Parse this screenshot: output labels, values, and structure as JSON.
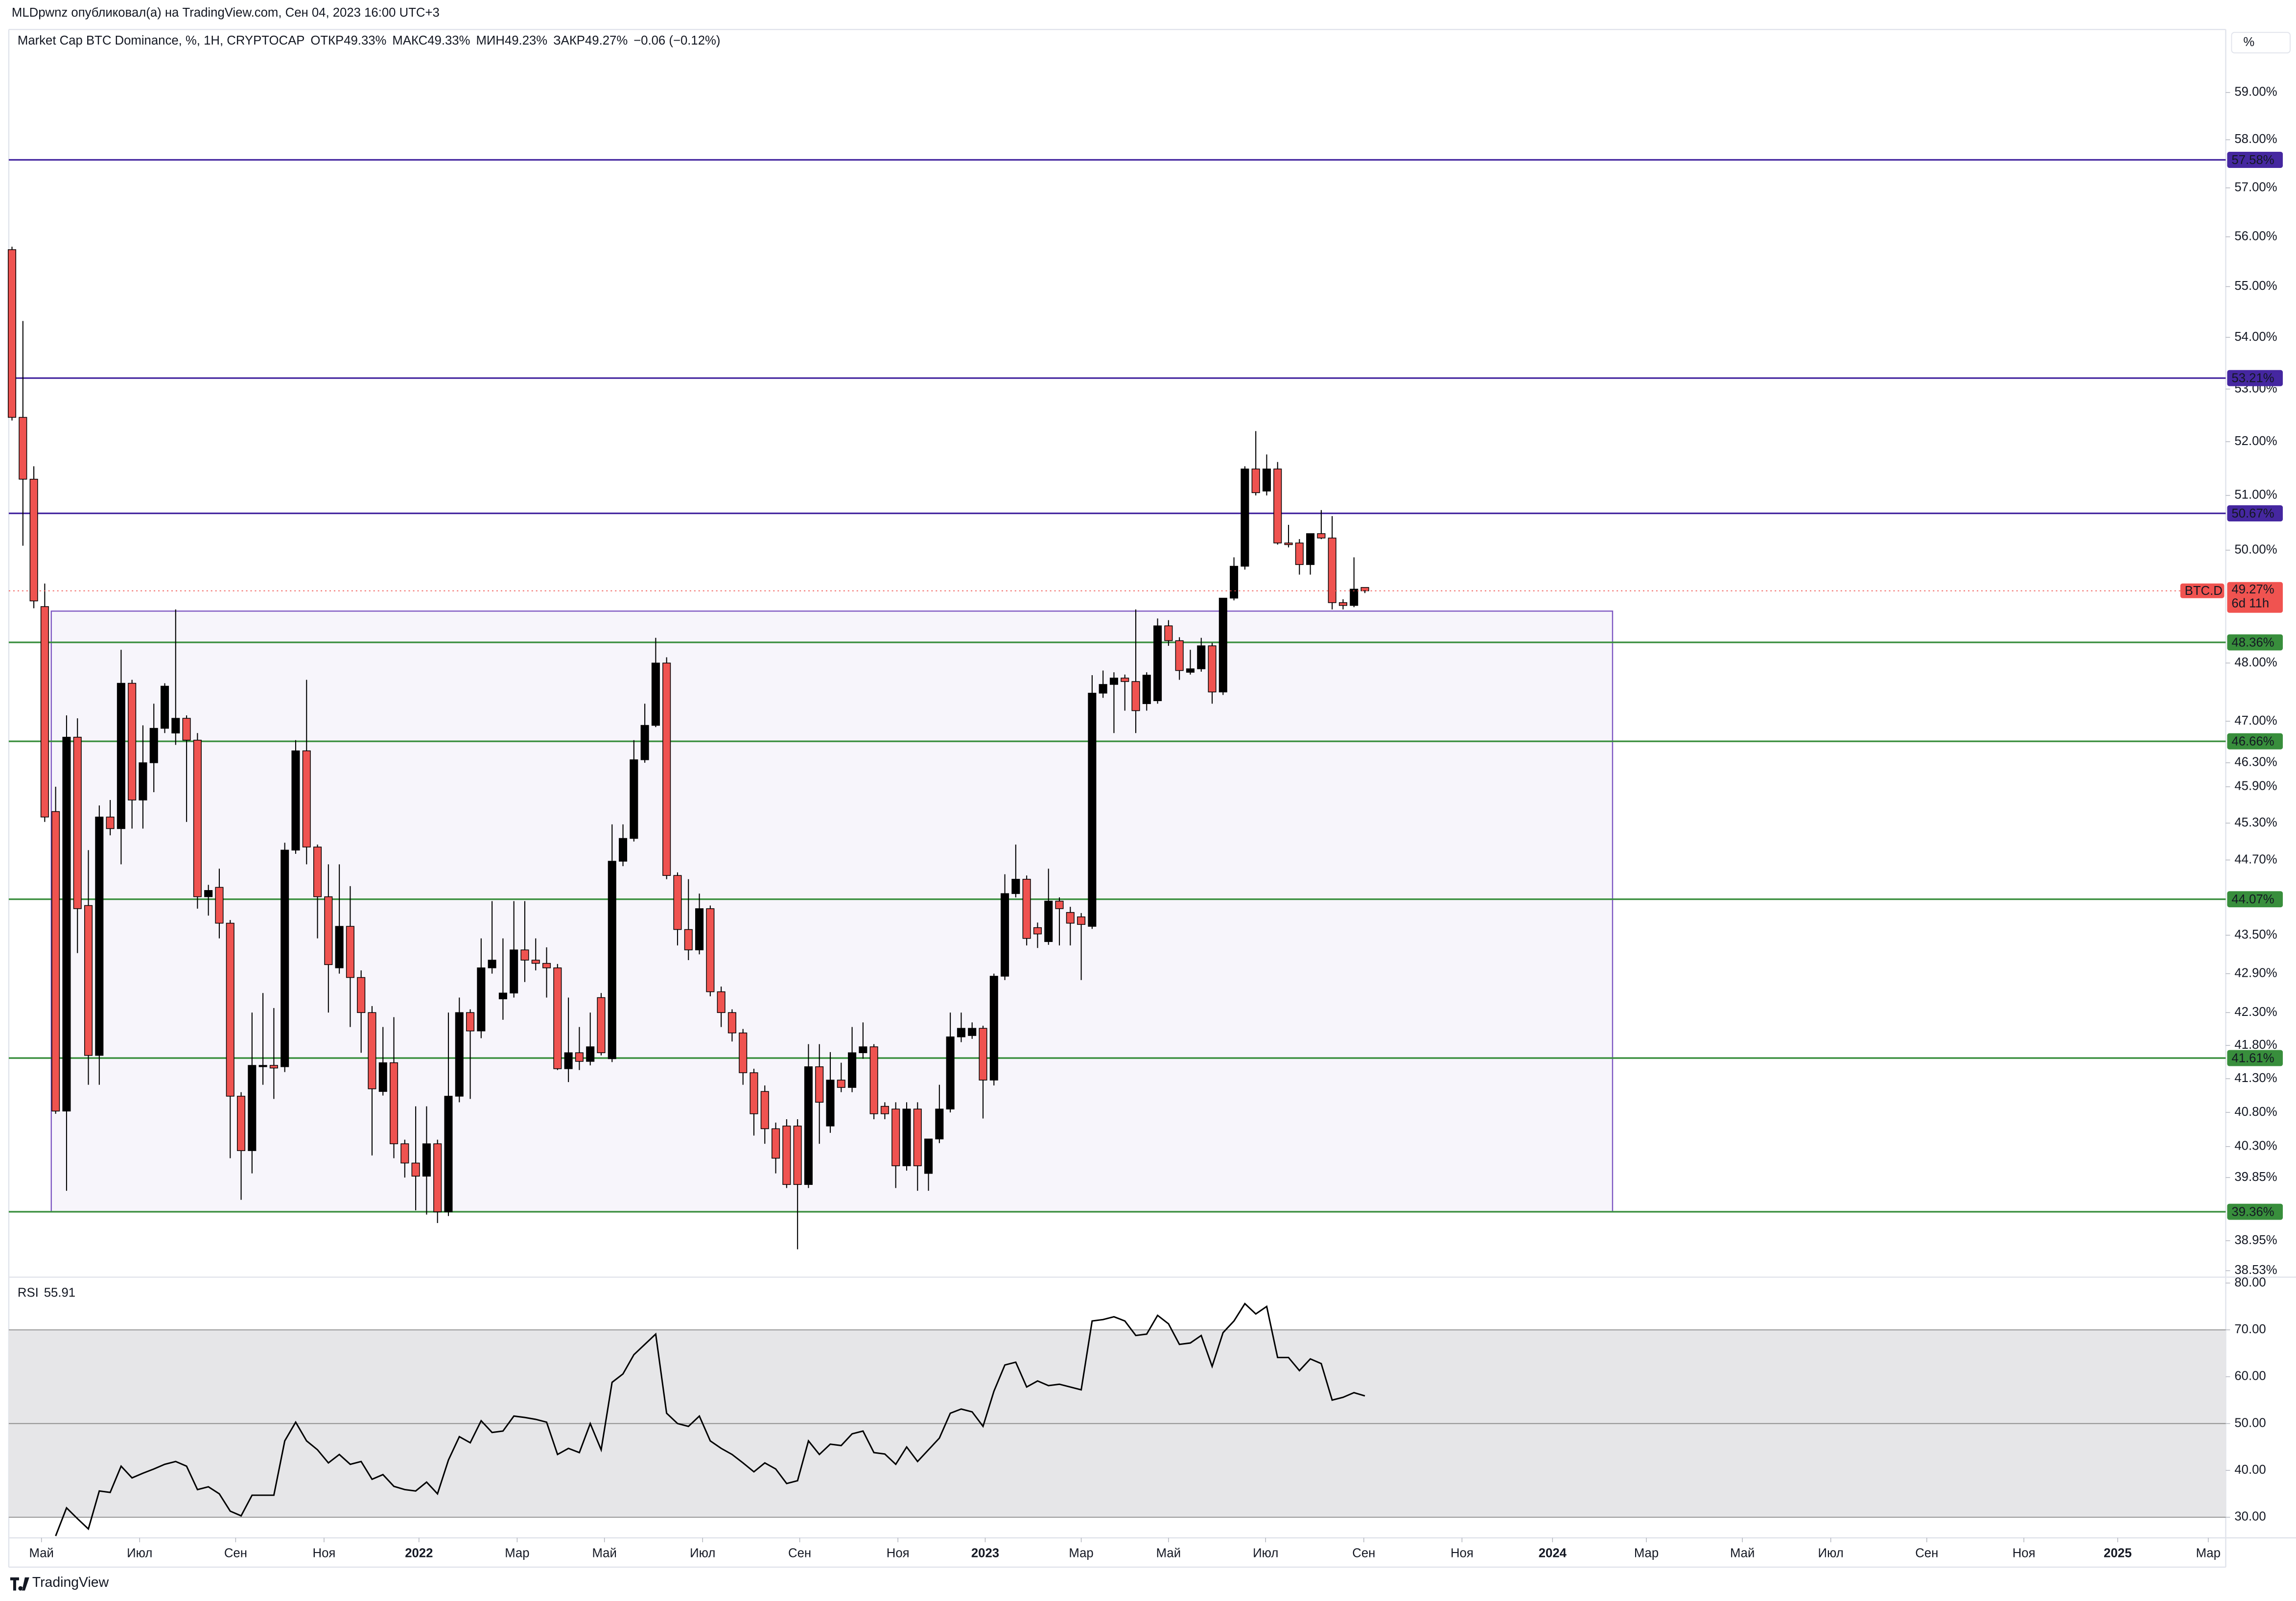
{
  "header": {
    "publisher": "MLDpwnz опубликовал(а) на TradingView.com, Сен 04, 2023 16:00 UTC+3",
    "logo": "TradingView",
    "unit_button": "%"
  },
  "chart_data": [
    {
      "type": "candlestick",
      "title": "Market Cap BTC Dominance, %, 1H, CRYPTOCAP",
      "legend_values": [
        {
          "label": "ОТКР",
          "value": "49.33%"
        },
        {
          "label": "МАКС",
          "value": "49.33%"
        },
        {
          "label": "МИН",
          "value": "49.23%"
        },
        {
          "label": "ЗАКР",
          "value": "49.27%"
        }
      ],
      "change": "−0.06 (−0.12%)",
      "log_scale": true,
      "ylim": [
        38.44,
        60.36
      ],
      "yticks": [
        {
          "value": 59,
          "label": "59.00%"
        },
        {
          "value": 58,
          "label": "58.00%"
        },
        {
          "value": 57,
          "label": "57.00%"
        },
        {
          "value": 56,
          "label": "56.00%"
        },
        {
          "value": 55,
          "label": "55.00%"
        },
        {
          "value": 54,
          "label": "54.00%"
        },
        {
          "value": 53,
          "label": "53.00%"
        },
        {
          "value": 52,
          "label": "52.00%"
        },
        {
          "value": 51,
          "label": "51.00%"
        },
        {
          "value": 50,
          "label": "50.00%"
        },
        {
          "value": 48,
          "label": "48.00%"
        },
        {
          "value": 47,
          "label": "47.00%"
        },
        {
          "value": 46.3,
          "label": "46.30%"
        },
        {
          "value": 45.9,
          "label": "45.90%"
        },
        {
          "value": 45.3,
          "label": "45.30%"
        },
        {
          "value": 44.7,
          "label": "44.70%"
        },
        {
          "value": 43.5,
          "label": "43.50%"
        },
        {
          "value": 42.9,
          "label": "42.90%"
        },
        {
          "value": 42.3,
          "label": "42.30%"
        },
        {
          "value": 41.8,
          "label": "41.80%"
        },
        {
          "value": 41.3,
          "label": "41.30%"
        },
        {
          "value": 40.8,
          "label": "40.80%"
        },
        {
          "value": 40.3,
          "label": "40.30%"
        },
        {
          "value": 39.85,
          "label": "39.85%"
        },
        {
          "value": 38.95,
          "label": "38.95%"
        },
        {
          "value": 38.53,
          "label": "38.53%"
        }
      ],
      "xlim": [
        -1.1,
        202.9
      ],
      "xticks": [
        {
          "value": 2.7,
          "label": "Май"
        },
        {
          "value": 11.7,
          "label": "Июл"
        },
        {
          "value": 20.5,
          "label": "Сен"
        },
        {
          "value": 28.6,
          "label": "Ноя"
        },
        {
          "value": 37.3,
          "label": "2022"
        },
        {
          "value": 46.3,
          "label": "Мар"
        },
        {
          "value": 54.3,
          "label": "Май"
        },
        {
          "value": 63.3,
          "label": "Июл"
        },
        {
          "value": 72.2,
          "label": "Сен"
        },
        {
          "value": 81.2,
          "label": "Ноя"
        },
        {
          "value": 89.2,
          "label": "2023"
        },
        {
          "value": 98,
          "label": "Мар"
        },
        {
          "value": 106,
          "label": "Май"
        },
        {
          "value": 114.9,
          "label": "Июл"
        },
        {
          "value": 123.9,
          "label": "Сен"
        },
        {
          "value": 132.9,
          "label": "Ноя"
        },
        {
          "value": 141.2,
          "label": "2024"
        },
        {
          "value": 149.8,
          "label": "Мар"
        },
        {
          "value": 158.6,
          "label": "Май"
        },
        {
          "value": 166.7,
          "label": "Июл"
        },
        {
          "value": 175.5,
          "label": "Сен"
        },
        {
          "value": 184.4,
          "label": "Ноя"
        },
        {
          "value": 193,
          "label": "2025"
        },
        {
          "value": 201.3,
          "label": "Мар"
        }
      ],
      "up_color": "#000000",
      "down_color": "#ef5350",
      "ohlc": [
        [
          55.74,
          55.8,
          52.4,
          52.46
        ],
        [
          52.46,
          54.32,
          50.08,
          51.3
        ],
        [
          51.3,
          51.54,
          48.96,
          49.09
        ],
        [
          48.99,
          49.4,
          45.32,
          45.4
        ],
        [
          45.49,
          45.9,
          40.78,
          40.82
        ],
        [
          40.82,
          47.1,
          39.66,
          46.73
        ],
        [
          46.73,
          47.05,
          43.22,
          43.92
        ],
        [
          43.97,
          44.86,
          41.21,
          41.65
        ],
        [
          41.65,
          45.59,
          41.21,
          45.4
        ],
        [
          45.4,
          45.68,
          45.1,
          45.21
        ],
        [
          45.21,
          48.23,
          44.63,
          47.65
        ],
        [
          47.65,
          47.71,
          45.21,
          45.68
        ],
        [
          45.68,
          46.93,
          45.21,
          46.3
        ],
        [
          46.3,
          47.3,
          45.81,
          46.88
        ],
        [
          46.88,
          47.65,
          46.8,
          47.6
        ],
        [
          46.8,
          48.94,
          46.6,
          47.05
        ],
        [
          47.05,
          47.1,
          45.32,
          46.68
        ],
        [
          46.68,
          46.8,
          43.92,
          44.11
        ],
        [
          44.11,
          44.3,
          43.81,
          44.21
        ],
        [
          44.26,
          44.56,
          43.45,
          43.69
        ],
        [
          43.69,
          43.74,
          40.13,
          41.04
        ],
        [
          41.04,
          41.1,
          39.53,
          40.24
        ],
        [
          40.24,
          42.3,
          39.91,
          41.5
        ],
        [
          41.48,
          42.6,
          41.21,
          41.5
        ],
        [
          41.5,
          42.37,
          41,
          41.46
        ],
        [
          41.48,
          44.98,
          41.4,
          44.86
        ],
        [
          44.86,
          46.68,
          44.8,
          46.5
        ],
        [
          46.5,
          47.71,
          44.63,
          44.91
        ],
        [
          44.91,
          44.95,
          43.45,
          44.11
        ],
        [
          44.11,
          44.63,
          42.3,
          43.04
        ],
        [
          42.99,
          44.63,
          42.9,
          43.64
        ],
        [
          43.64,
          44.28,
          42.08,
          42.84
        ],
        [
          42.84,
          42.95,
          41.69,
          42.3
        ],
        [
          42.3,
          42.4,
          40.17,
          41.15
        ],
        [
          41.11,
          42.08,
          41.05,
          41.54
        ],
        [
          41.54,
          42.23,
          40.13,
          40.34
        ],
        [
          40.34,
          40.4,
          39.85,
          40.06
        ],
        [
          40.06,
          40.89,
          39.38,
          39.87
        ],
        [
          39.87,
          40.89,
          39.32,
          40.34
        ],
        [
          40.34,
          40.4,
          39.2,
          39.36
        ],
        [
          39.36,
          42.3,
          39.3,
          41.04
        ],
        [
          41.04,
          42.53,
          40.95,
          42.3
        ],
        [
          42.3,
          42.35,
          41,
          42.02
        ],
        [
          42.02,
          43.45,
          41.91,
          42.99
        ],
        [
          42.99,
          44.04,
          42.9,
          43.11
        ],
        [
          42.51,
          43.45,
          42.19,
          42.6
        ],
        [
          42.6,
          44.04,
          42.53,
          43.27
        ],
        [
          43.27,
          44.04,
          42.77,
          43.11
        ],
        [
          43.11,
          43.45,
          42.95,
          43.06
        ],
        [
          43.06,
          43.31,
          42.53,
          42.99
        ],
        [
          42.99,
          43.05,
          41.43,
          41.45
        ],
        [
          41.45,
          42.53,
          41.25,
          41.69
        ],
        [
          41.69,
          42.08,
          41.43,
          41.56
        ],
        [
          41.56,
          42.3,
          41.5,
          41.78
        ],
        [
          42.53,
          42.6,
          41.65,
          41.69
        ],
        [
          41.6,
          45.28,
          41.55,
          44.68
        ],
        [
          44.68,
          45.28,
          44.6,
          45.05
        ],
        [
          45.05,
          46.68,
          45,
          46.35
        ],
        [
          46.35,
          47.3,
          46.3,
          46.93
        ],
        [
          46.93,
          48.44,
          46.9,
          48
        ],
        [
          48,
          48.1,
          44.39,
          44.45
        ],
        [
          44.45,
          44.5,
          43.34,
          43.59
        ],
        [
          43.59,
          44.39,
          43.11,
          43.27
        ],
        [
          43.27,
          44.16,
          43.2,
          43.92
        ],
        [
          43.92,
          43.97,
          42.55,
          42.62
        ],
        [
          42.62,
          42.7,
          42.08,
          42.3
        ],
        [
          42.3,
          42.35,
          41.86,
          41.99
        ],
        [
          41.99,
          42.05,
          41.21,
          41.39
        ],
        [
          41.39,
          41.45,
          40.46,
          40.78
        ],
        [
          41.11,
          41.2,
          40.34,
          40.56
        ],
        [
          40.56,
          40.65,
          39.91,
          40.13
        ],
        [
          40.6,
          40.7,
          39.7,
          39.75
        ],
        [
          40.6,
          40.7,
          38.83,
          39.75
        ],
        [
          39.75,
          41.82,
          39.7,
          41.48
        ],
        [
          41.48,
          41.82,
          40.34,
          40.95
        ],
        [
          40.6,
          41.7,
          40.5,
          41.28
        ],
        [
          41.28,
          41.54,
          41.1,
          41.17
        ],
        [
          41.17,
          42.08,
          41.1,
          41.69
        ],
        [
          41.69,
          42.15,
          41.6,
          41.78
        ],
        [
          41.78,
          41.82,
          40.7,
          40.78
        ],
        [
          40.89,
          40.95,
          40.7,
          40.78
        ],
        [
          40.85,
          40.95,
          39.7,
          40.02
        ],
        [
          40.02,
          40.95,
          39.95,
          40.85
        ],
        [
          40.85,
          40.95,
          39.66,
          40.02
        ],
        [
          39.91,
          40.41,
          39.66,
          40.41
        ],
        [
          40.41,
          41.21,
          40.35,
          40.85
        ],
        [
          40.85,
          42.3,
          40.8,
          41.93
        ],
        [
          41.93,
          42.3,
          41.85,
          42.06
        ],
        [
          41.95,
          42.15,
          41.9,
          42.06
        ],
        [
          42.06,
          42.1,
          40.71,
          41.28
        ],
        [
          41.28,
          42.9,
          41.2,
          42.86
        ],
        [
          42.86,
          44.47,
          42.8,
          44.16
        ],
        [
          44.16,
          44.95,
          44.1,
          44.39
        ],
        [
          44.39,
          44.45,
          43.34,
          43.45
        ],
        [
          43.62,
          43.7,
          43.3,
          43.52
        ],
        [
          43.4,
          44.56,
          43.35,
          44.04
        ],
        [
          44.04,
          44.1,
          43.34,
          43.92
        ],
        [
          43.86,
          43.95,
          43.34,
          43.69
        ],
        [
          43.79,
          43.85,
          42.8,
          43.67
        ],
        [
          43.64,
          47.79,
          43.6,
          47.48
        ],
        [
          47.48,
          47.87,
          47.4,
          47.63
        ],
        [
          47.63,
          47.84,
          46.8,
          47.74
        ],
        [
          47.74,
          47.8,
          47.18,
          47.68
        ],
        [
          47.68,
          48.94,
          46.8,
          47.18
        ],
        [
          47.3,
          47.84,
          47.18,
          47.79
        ],
        [
          47.35,
          48.78,
          47.3,
          48.65
        ],
        [
          48.65,
          48.75,
          48.3,
          48.39
        ],
        [
          48.39,
          48.45,
          47.71,
          47.87
        ],
        [
          47.84,
          48.23,
          47.8,
          47.9
        ],
        [
          47.9,
          48.44,
          47.85,
          48.3
        ],
        [
          48.3,
          48.35,
          47.3,
          47.5
        ],
        [
          47.5,
          49.14,
          47.45,
          49.14
        ],
        [
          49.14,
          49.87,
          49.1,
          49.71
        ],
        [
          49.71,
          51.54,
          49.65,
          51.49
        ],
        [
          51.49,
          52.2,
          51,
          51.05
        ],
        [
          51.08,
          51.76,
          51,
          51.49
        ],
        [
          51.49,
          51.62,
          50.1,
          50.13
        ],
        [
          50.13,
          50.46,
          50.05,
          50.1
        ],
        [
          50.13,
          50.2,
          49.56,
          49.74
        ],
        [
          49.74,
          50.3,
          49.56,
          50.3
        ],
        [
          50.3,
          50.73,
          50.2,
          50.22
        ],
        [
          50.22,
          50.62,
          48.94,
          49.06
        ],
        [
          49.06,
          49.12,
          48.94,
          49.01
        ],
        [
          49.01,
          49.87,
          48.98,
          49.3
        ],
        [
          49.33,
          49.33,
          49.23,
          49.27
        ]
      ],
      "levels": [
        {
          "value": 57.58,
          "label": "57.58%",
          "color": "#4527a0"
        },
        {
          "value": 53.21,
          "label": "53.21%",
          "color": "#4527a0"
        },
        {
          "value": 50.67,
          "label": "50.67%",
          "color": "#4527a0"
        },
        {
          "value": 48.36,
          "label": "48.36%",
          "color": "#388e3c"
        },
        {
          "value": 46.66,
          "label": "46.66%",
          "color": "#388e3c"
        },
        {
          "value": 44.07,
          "label": "44.07%",
          "color": "#388e3c"
        },
        {
          "value": 41.61,
          "label": "41.61%",
          "color": "#388e3c"
        },
        {
          "value": 39.36,
          "label": "39.36%",
          "color": "#388e3c"
        }
      ],
      "range_box": {
        "high": 48.91,
        "low": 39.36,
        "start": 3.6,
        "end": 146.7,
        "color": "#7e57c2"
      },
      "last_price": {
        "symbol": "BTC.D",
        "value": 49.27,
        "label": "49.27%",
        "countdown": "6d 11h",
        "color": "#f05350"
      }
    },
    {
      "type": "line",
      "title": "RSI",
      "last_value": 55.91,
      "color": "#000000",
      "ylim": [
        25.6,
        81.25
      ],
      "yticks": [
        {
          "value": 80,
          "label": "80.00"
        },
        {
          "value": 70,
          "label": "70.00"
        },
        {
          "value": 60,
          "label": "60.00"
        },
        {
          "value": 50,
          "label": "50.00"
        },
        {
          "value": 40,
          "label": "40.00"
        },
        {
          "value": 30,
          "label": "30.00"
        }
      ],
      "band": [
        30,
        70
      ],
      "hlines": [
        70,
        50,
        30
      ],
      "values": [
        null,
        null,
        null,
        null,
        26,
        32,
        29.7,
        27.5,
        35.6,
        35.3,
        40.9,
        38.4,
        39.4,
        40.3,
        41.3,
        41.9,
        40.9,
        35.9,
        36.5,
        35,
        31.3,
        30.3,
        34.7,
        34.7,
        34.7,
        46.3,
        50.3,
        46.3,
        44.4,
        41.6,
        43.4,
        41.3,
        41.9,
        38.1,
        39.1,
        36.6,
        35.9,
        35.6,
        37.5,
        35,
        42.2,
        47.2,
        45.9,
        50.6,
        48.1,
        48.4,
        51.6,
        51.3,
        50.9,
        50.3,
        43.4,
        44.7,
        43.8,
        50,
        44.4,
        58.8,
        60.6,
        64.7,
        66.9,
        69.1,
        52.2,
        50,
        49.4,
        51.6,
        46.3,
        44.7,
        43.4,
        41.6,
        39.7,
        41.6,
        40.3,
        37.2,
        37.8,
        46.3,
        43.4,
        45.6,
        45.3,
        47.8,
        48.4,
        43.8,
        43.5,
        41.3,
        45,
        41.9,
        44.4,
        46.9,
        52.2,
        53.1,
        52.5,
        49.4,
        56.9,
        62.5,
        63.1,
        57.8,
        59.1,
        58.1,
        58.4,
        57.8,
        57.2,
        71.9,
        72.2,
        72.8,
        71.9,
        68.8,
        69.1,
        73.1,
        71.3,
        66.9,
        67.2,
        68.8,
        62.2,
        69.4,
        71.9,
        75.6,
        73.4,
        75,
        64.1,
        64.1,
        61.3,
        63.8,
        62.8,
        55,
        55.6,
        56.6,
        55.91
      ]
    }
  ]
}
